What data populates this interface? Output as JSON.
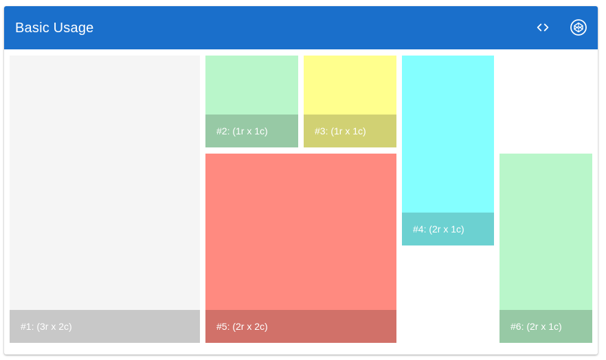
{
  "header": {
    "title": "Basic Usage",
    "background_color": "#1a6fcb",
    "actions": [
      {
        "icon": "code-icon",
        "label": "View source"
      },
      {
        "icon": "codepen-icon",
        "label": "Open in CodePen"
      }
    ]
  },
  "grid": {
    "tiles": [
      {
        "id": "tile-1",
        "label": "#1: (3r x 2c)",
        "color": "#f5f5f5",
        "rows": 3,
        "cols": 2
      },
      {
        "id": "tile-2",
        "label": "#2: (1r x 1c)",
        "color": "#b9f6ca",
        "rows": 1,
        "cols": 1
      },
      {
        "id": "tile-3",
        "label": "#3: (1r x 1c)",
        "color": "#ffff8d",
        "rows": 1,
        "cols": 1
      },
      {
        "id": "tile-4",
        "label": "#4: (2r x 1c)",
        "color": "#84ffff",
        "rows": 2,
        "cols": 1
      },
      {
        "id": "tile-5",
        "label": "#5: (2r x 2c)",
        "color": "#ff8a80",
        "rows": 2,
        "cols": 2
      },
      {
        "id": "tile-6",
        "label": "#6: (2r x 1c)",
        "color": "#b9f6ca",
        "rows": 2,
        "cols": 1
      }
    ]
  }
}
